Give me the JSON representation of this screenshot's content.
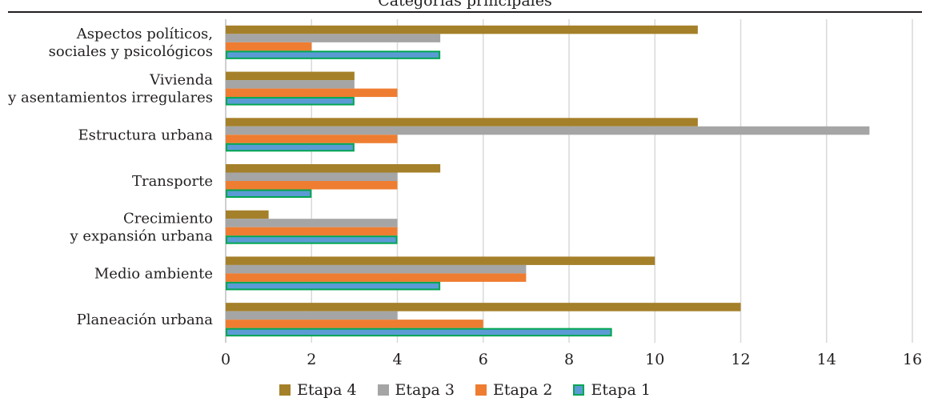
{
  "chart_data": {
    "type": "bar",
    "orientation": "horizontal",
    "title": "Categorías principales",
    "categories": [
      [
        "Aspectos políticos,",
        "sociales y psicológicos"
      ],
      [
        "Vivienda",
        "y asentamientos irregulares"
      ],
      [
        "Estructura urbana"
      ],
      [
        "Transporte"
      ],
      [
        "Crecimiento",
        "y expansión urbana"
      ],
      [
        "Medio ambiente"
      ],
      [
        "Planeación urbana"
      ]
    ],
    "series": [
      {
        "name": "Etapa 4",
        "color": "#a5802a",
        "values": [
          11,
          3,
          11,
          5,
          1,
          10,
          12
        ]
      },
      {
        "name": "Etapa 3",
        "color": "#a5a5a5",
        "values": [
          5,
          3,
          15,
          4,
          4,
          7,
          4
        ]
      },
      {
        "name": "Etapa 2",
        "color": "#ee7d31",
        "values": [
          2,
          4,
          4,
          4,
          4,
          7,
          6
        ]
      },
      {
        "name": "Etapa 1",
        "color": "#5b9bd5",
        "border_color": "#00a651",
        "values": [
          5,
          3,
          3,
          2,
          4,
          5,
          9
        ]
      }
    ],
    "xlim": [
      0,
      16
    ],
    "xticks": [
      0,
      2,
      4,
      6,
      8,
      10,
      12,
      14,
      16
    ],
    "grid": "vertical",
    "legend_position": "bottom"
  }
}
